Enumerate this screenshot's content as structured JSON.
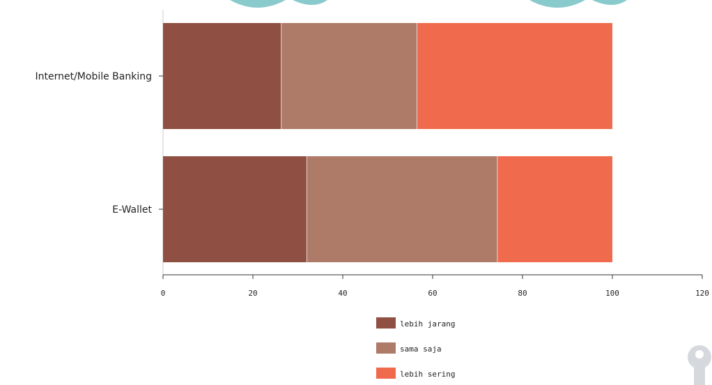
{
  "chart_data": {
    "type": "bar",
    "orientation": "horizontal",
    "stacked": true,
    "categories": [
      "Internet/Mobile Banking",
      "E-Wallet"
    ],
    "series": [
      {
        "name": "lebih jarang",
        "values": [
          26.3,
          32.0
        ]
      },
      {
        "name": "sama saja",
        "values": [
          30.2,
          42.4
        ]
      },
      {
        "name": "lebih sering",
        "values": [
          43.5,
          25.6
        ]
      }
    ],
    "xlim": [
      0,
      120
    ],
    "xticks": [
      "0",
      "20",
      "40",
      "60",
      "80",
      "100",
      "120"
    ],
    "legend_position": "bottom",
    "grid": false
  },
  "colors": {
    "lebih jarang": "#8f4f42",
    "sama saja": "#ae7b68",
    "lebih sering": "#f06b4e",
    "axis": "#cccccc",
    "watermark": "#7cc4c8"
  }
}
